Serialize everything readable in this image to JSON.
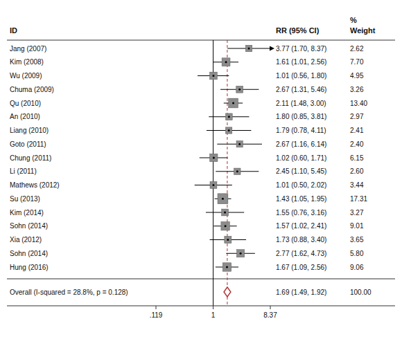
{
  "chart_data": {
    "type": "forest",
    "log": "x",
    "xlim": [
      0.119,
      8.37
    ],
    "xticks": [
      {
        "value": 0.119,
        "label": ".119"
      },
      1,
      8.37
    ],
    "grid": false,
    "null_value": 1,
    "color": "#8c8c8c",
    "column_headers": {
      "id": "ID",
      "estimate": "RR (95% CI)",
      "weight_line1": "%",
      "weight_line2": "Weight"
    },
    "categories": [
      "Jang (2007)",
      "Kim (2008)",
      "Wu (2009)",
      "Chuma (2009)",
      "Qu (2010)",
      "An (2010)",
      "Liang (2010)",
      "Goto (2011)",
      "Chung (2011)",
      "Li (2011)",
      "Mathews (2012)",
      "Su (2013)",
      "Kim (2014)",
      "Sohn (2014)",
      "Xia (2012)",
      "Sohn (2014)",
      "Hung (2016)"
    ],
    "values": [
      3.77,
      1.61,
      1.01,
      2.67,
      2.11,
      1.8,
      1.79,
      2.67,
      1.02,
      2.45,
      1.01,
      1.43,
      1.55,
      1.57,
      1.73,
      2.77,
      1.67
    ],
    "ci_low": [
      1.7,
      1.01,
      0.56,
      1.31,
      1.48,
      0.85,
      0.78,
      1.16,
      0.6,
      1.1,
      0.5,
      1.05,
      0.76,
      1.02,
      0.88,
      1.62,
      1.09
    ],
    "ci_high": [
      8.37,
      2.56,
      1.8,
      5.46,
      3.0,
      3.81,
      4.11,
      6.14,
      1.71,
      5.45,
      2.02,
      1.95,
      3.16,
      2.41,
      3.4,
      4.73,
      2.56
    ],
    "value_labels": [
      "3.77 (1.70, 8.37)",
      "1.61 (1.01, 2.56)",
      "1.01 (0.56, 1.80)",
      "2.67 (1.31, 5.46)",
      "2.11 (1.48, 3.00)",
      "1.80 (0.85, 3.81)",
      "1.79 (0.78, 4.11)",
      "2.67 (1.16, 6.14)",
      "1.02 (0.60, 1.71)",
      "2.45 (1.10, 5.45)",
      "1.01 (0.50, 2.02)",
      "1.43 (1.05, 1.95)",
      "1.55 (0.76, 3.16)",
      "1.57 (1.02, 2.41)",
      "1.73 (0.88, 3.40)",
      "2.77 (1.62, 4.73)",
      "1.67 (1.09, 2.56)"
    ],
    "weights": [
      2.62,
      7.7,
      4.95,
      3.26,
      13.4,
      2.97,
      2.41,
      2.4,
      6.15,
      2.6,
      3.44,
      17.31,
      3.27,
      9.01,
      3.65,
      5.8,
      9.06
    ],
    "weight_labels": [
      "2.62",
      "7.70",
      "4.95",
      "3.26",
      "13.40",
      "2.97",
      "2.41",
      "2.40",
      "6.15",
      "2.60",
      "3.44",
      "17.31",
      "3.27",
      "9.01",
      "3.65",
      "5.80",
      "9.06"
    ],
    "overall": {
      "label": "Overall  (I-squared = 28.8%, p = 0.128)",
      "value": 1.69,
      "ci_low": 1.49,
      "ci_high": 1.92,
      "value_label": "1.69 (1.49, 1.92)",
      "weight_label": "100.00",
      "color": "#b03030"
    }
  }
}
